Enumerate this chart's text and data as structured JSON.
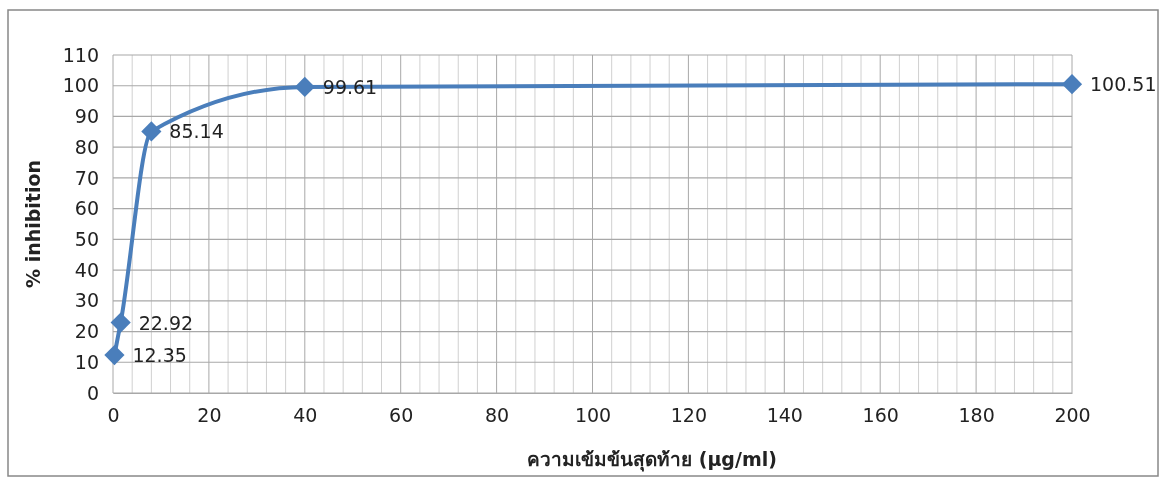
{
  "chart_data": {
    "type": "line",
    "xlabel": "ความเข้มข้นสุดท้าย (µg/ml)",
    "ylabel": "% inhibition",
    "x": [
      0.3,
      1.6,
      8,
      40,
      200
    ],
    "series": [
      {
        "color": "#4a7ebb",
        "values": [
          12.35,
          22.92,
          85.14,
          99.61,
          100.51
        ]
      }
    ],
    "data_labels": true,
    "marker": "diamond",
    "grid": true,
    "xlim": [
      0,
      200
    ],
    "xticks": [
      0,
      {
        "value": 4,
        "label": null
      },
      {
        "value": 8,
        "label": null
      },
      {
        "value": 12,
        "label": null
      },
      {
        "value": 16,
        "label": null
      },
      20,
      {
        "value": 24,
        "label": null
      },
      {
        "value": 28,
        "label": null
      },
      {
        "value": 32,
        "label": null
      },
      {
        "value": 36,
        "label": null
      },
      40,
      {
        "value": 44,
        "label": null
      },
      {
        "value": 48,
        "label": null
      },
      {
        "value": 52,
        "label": null
      },
      {
        "value": 56,
        "label": null
      },
      60,
      {
        "value": 64,
        "label": null
      },
      {
        "value": 68,
        "label": null
      },
      {
        "value": 72,
        "label": null
      },
      {
        "value": 76,
        "label": null
      },
      80,
      {
        "value": 84,
        "label": null
      },
      {
        "value": 88,
        "label": null
      },
      {
        "value": 92,
        "label": null
      },
      {
        "value": 96,
        "label": null
      },
      100,
      {
        "value": 104,
        "label": null
      },
      {
        "value": 108,
        "label": null
      },
      {
        "value": 112,
        "label": null
      },
      {
        "value": 116,
        "label": null
      },
      120,
      {
        "value": 124,
        "label": null
      },
      {
        "value": 128,
        "label": null
      },
      {
        "value": 132,
        "label": null
      },
      {
        "value": 136,
        "label": null
      },
      140,
      {
        "value": 144,
        "label": null
      },
      {
        "value": 148,
        "label": null
      },
      {
        "value": 152,
        "label": null
      },
      {
        "value": 156,
        "label": null
      },
      160,
      {
        "value": 164,
        "label": null
      },
      {
        "value": 168,
        "label": null
      },
      {
        "value": 172,
        "label": null
      },
      {
        "value": 176,
        "label": null
      },
      180,
      {
        "value": 184,
        "label": null
      },
      {
        "value": 188,
        "label": null
      },
      {
        "value": 192,
        "label": null
      },
      {
        "value": 196,
        "label": null
      },
      200
    ],
    "ylim": [
      0,
      110
    ],
    "yticks": [
      0,
      10,
      20,
      30,
      40,
      50,
      60,
      70,
      80,
      90,
      100,
      110
    ]
  }
}
